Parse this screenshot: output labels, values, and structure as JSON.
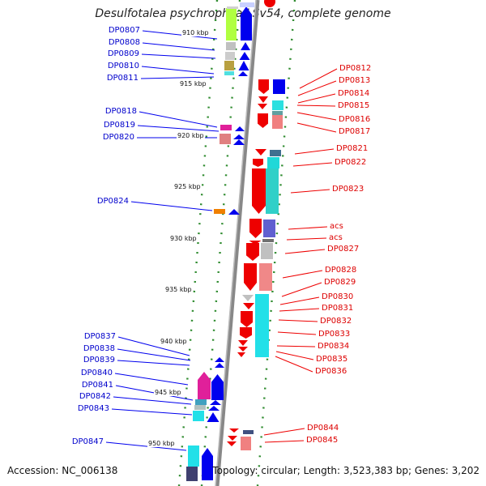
{
  "title": "Desulfotalea psychrophila LSv54, complete genome",
  "footer": {
    "accession": "Accession: NC_006138",
    "summary": "Topology: circular; Length: 3,523,383 bp; Genes: 3,202"
  },
  "kbp_ticks": [
    "910 kbp",
    "915 kbp",
    "920 kbp",
    "925 kbp",
    "930 kbp",
    "935 kbp",
    "940 kbp",
    "945 kbp",
    "950 kbp"
  ],
  "left_labels": [
    "DP0807",
    "DP0808",
    "DP0809",
    "DP0810",
    "DP0811",
    "DP0818",
    "DP0819",
    "DP0820",
    "DP0824",
    "DP0837",
    "DP0838",
    "DP0839",
    "DP0840",
    "DP0841",
    "DP0842",
    "DP0843",
    "DP0847"
  ],
  "right_labels": [
    "DP0812",
    "DP0813",
    "DP0814",
    "DP0815",
    "DP0816",
    "DP0817",
    "DP0821",
    "DP0822",
    "DP0823",
    "acs",
    "acs",
    "DP0827",
    "DP0828",
    "DP0829",
    "DP0830",
    "DP0831",
    "DP0832",
    "DP0833",
    "DP0834",
    "DP0835",
    "DP0836",
    "DP0844",
    "DP0845"
  ],
  "colors": {
    "backbone": "#888888",
    "tick_dots": "#2e8b2e",
    "left_gene_arrows": "#0000ee",
    "right_gene_arrows": "#ee0000",
    "left_label_text": "#0000cc",
    "right_label_text": "#dd0000"
  }
}
